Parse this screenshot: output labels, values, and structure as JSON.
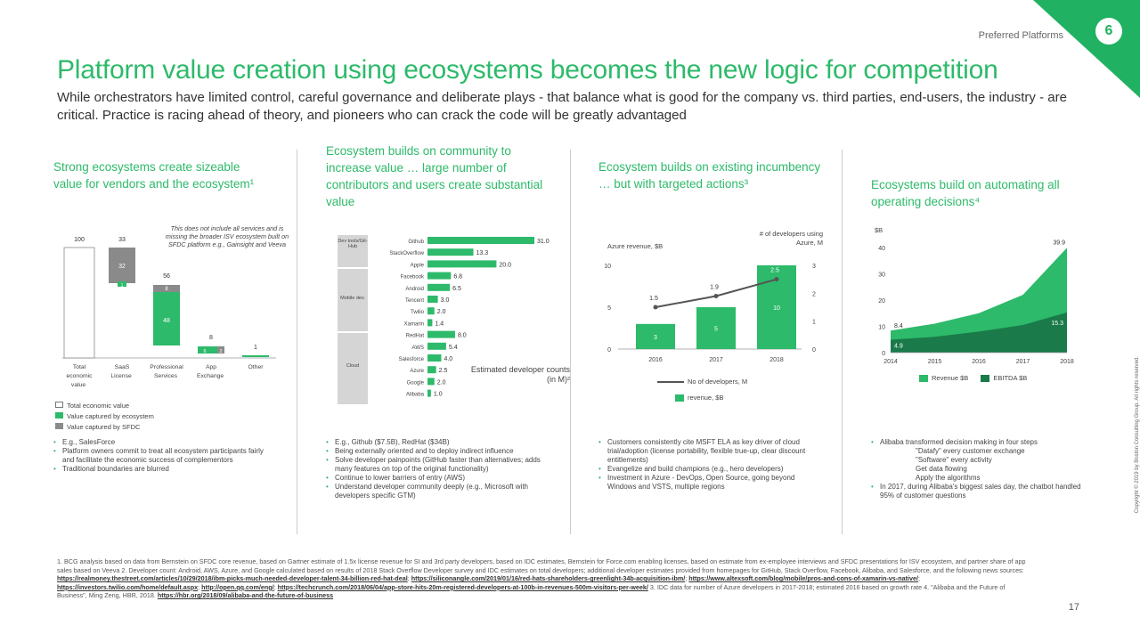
{
  "header": {
    "section": "Preferred Platforms",
    "page_badge": "6"
  },
  "title": "Platform value creation using ecosystems becomes the new logic for competition",
  "subtitle": "While orchestrators have limited control, careful governance and deliberate plays - that balance what is good for the company vs. third parties, end-users, the industry - are critical. Practice is racing ahead of theory, and pioneers who can crack the code will be greatly advantaged",
  "colors": {
    "green": "#2dba6a",
    "dark_green": "#1a7a4a",
    "grey": "#888888"
  },
  "col1": {
    "heading": "Strong ecosystems create sizeable value for vendors and the ecosystem¹",
    "note": "This does not include all services and is missing the broader ISV ecosystem built on SFDC platform e.g., Gainsight and Veeva",
    "legend": [
      "Total economic value",
      "Value captured by ecosystem",
      "Value captured by SFDC"
    ],
    "bullets": [
      "E.g., SalesForce",
      "Platform owners commit to treat all ecosystem participants fairly and facilitate the economic success of complementors",
      "Traditional boundaries are blurred"
    ]
  },
  "col2": {
    "heading": "Ecosystem builds on community to increase value … large number of contributors and users create substantial value",
    "group_labels": [
      "Dev tools/Git-Hub",
      "Mobile dev.",
      "Cloud"
    ],
    "chart_label": "Estimated developer counts (in M)²",
    "bullets": [
      "E.g., Github ($7.5B), RedHat ($34B)",
      "Being externally oriented and to deploy indirect influence",
      "Solve developer painpoints (GitHub faster than alternatives; adds many features on top of the original functionality)",
      "Continue to lower barriers of entry (AWS)",
      "Understand developer community deeply (e.g., Microsoft with developers specific GTM)"
    ]
  },
  "col3": {
    "heading": "Ecosystem builds on existing incumbency … but with targeted actions³",
    "left_axis_label": "Azure revenue, $B",
    "right_axis_label": "# of developers using Azure, M",
    "legend": [
      "No of developers, M",
      "revenue, $B"
    ],
    "bullets": [
      "Customers consistently cite MSFT ELA as key driver of cloud trial/adoption (license portability, flexible true-up, clear discount entitlements)",
      "Evangelize and build champions (e.g., hero developers)",
      "Investment in Azure - DevOps, Open Source, going beyond Windows and VSTS, multiple regions"
    ]
  },
  "col4": {
    "heading": "Ecosystems build on automating all operating decisions⁴",
    "axis_unit": "$B",
    "legend": [
      "Revenue $B",
      "EBITDA $B"
    ],
    "bullets": [
      "Alibaba transformed decision making in four steps",
      "\"Datafy\" every customer exchange",
      "\"Software\" every activity",
      "Get data flowing",
      "Apply the algorithms",
      "In 2017, during Alibaba's biggest sales day, the chatbot handled 95% of customer questions"
    ]
  },
  "chart_data": [
    {
      "type": "bar",
      "title": "",
      "categories": [
        "Total economic value",
        "SaaS License",
        "Professional Services",
        "App Exchange",
        "Other"
      ],
      "series": [
        {
          "name": "Total economic value",
          "values": [
            100,
            0,
            0,
            0,
            0
          ]
        },
        {
          "name": "Value captured by ecosystem",
          "values": [
            0,
            1,
            48,
            6,
            1
          ]
        },
        {
          "name": "Value captured by SFDC",
          "values": [
            0,
            32,
            8,
            2,
            0
          ]
        }
      ],
      "top_labels": [
        "100",
        "33",
        "56",
        "8",
        "1"
      ],
      "segment_labels": [
        "32",
        "1",
        "48",
        "8",
        "6",
        "2"
      ],
      "ylim": [
        0,
        100
      ]
    },
    {
      "type": "bar",
      "title": "Estimated developer counts (in M)²",
      "categories": [
        "Github",
        "StackOverflow",
        "Apple",
        "Facebook",
        "Android",
        "Tencent",
        "Twilio",
        "Xamarin",
        "RedHat",
        "AWS",
        "Salesforce",
        "Azure",
        "Google",
        "Alibaba"
      ],
      "values": [
        31.0,
        13.3,
        20.0,
        6.8,
        6.5,
        3.0,
        2.0,
        1.4,
        8.0,
        5.4,
        4.0,
        2.5,
        2.0,
        1.0
      ],
      "value_labels": [
        "31.0",
        "13.3",
        "20.0",
        "6.8",
        "6.5",
        "3.0",
        "2.0",
        "1.4",
        "8.0",
        "5.4",
        "4.0",
        "2.5",
        "2.0",
        "1.0"
      ],
      "xlim": [
        0,
        31
      ]
    },
    {
      "type": "bar",
      "title": "",
      "categories": [
        "2016",
        "2017",
        "2018"
      ],
      "series": [
        {
          "name": "revenue, $B",
          "values": [
            3,
            5,
            10
          ]
        },
        {
          "name": "No of developers, M",
          "values": [
            1.5,
            1.9,
            2.5
          ]
        }
      ],
      "bar_labels": [
        "3",
        "5",
        "10"
      ],
      "line_labels": [
        "1.5",
        "1.9",
        "2.5"
      ],
      "left_ticks": [
        "0",
        "5",
        "10"
      ],
      "right_ticks": [
        "0",
        "1",
        "2",
        "3"
      ],
      "ylim": [
        0,
        10
      ],
      "y2lim": [
        0,
        3
      ]
    },
    {
      "type": "area",
      "title": "",
      "x": [
        "2014",
        "2015",
        "2016",
        "2017",
        "2018"
      ],
      "series": [
        {
          "name": "Revenue $B",
          "values": [
            8.4,
            11,
            15,
            22,
            39.9
          ]
        },
        {
          "name": "EBITDA $B",
          "values": [
            4.9,
            6,
            8,
            10.5,
            15.3
          ]
        }
      ],
      "point_labels": [
        "8.4",
        "39.9",
        "4.9",
        "15.3"
      ],
      "y_ticks": [
        "0",
        "10",
        "20",
        "30",
        "40"
      ],
      "ylim": [
        0,
        40
      ]
    }
  ],
  "footnote": {
    "text": "1. BCG analysis based on data from Bernstein on SFDC core revenue, based on Gartner estimate of 1.5x license revenue for SI and 3rd party developers, based on IDC estimates, Bernstein for Force.com enabling licenses, based on estimate from ex-employee interviews and SFDC presentations for ISV ecosystem, and partner share of app sales based on Veeva 2. Developer count: Android, AWS, Azure, and Google calculated based on results of 2018 Stack Overflow Developer survey and IDC estimates on total developers; additional developer estimates provided from homepages for GitHub, Stack Overflow, Facebook, Alibaba, and Salesforce, and the following news sources:",
    "links": [
      "https://realmoney.thestreet.com/articles/10/29/2018/ibm-picks-much-needed-developer-talent-34-billion-red-hat-deal",
      "https://siliconangle.com/2019/01/16/red-hats-shareholders-greenlight-34b-acquisition-ibm/",
      "https://www.altexsoft.com/blog/mobile/pros-and-cons-of-xamarin-vs-native/",
      "https://investors.twilio.com/home/default.aspx",
      "http://open.qq.com/eng/",
      "https://techcrunch.com/2018/06/04/app-store-hits-20m-registered-developers-at-100b-in-revenues-500m-visitors-per-week/"
    ],
    "tail": "3. IDC data for number of Azure developers in 2017-2018; estimated 2016 based on growth rate 4. \"Alibaba and the Future of Business\", Ming Zeng, HBR, 2018.",
    "last_link": "https://hbr.org/2018/09/alibaba-and-the-future-of-business"
  },
  "side_note": "Copyright © 2019 by Boston Consulting Group. All rights reserved.",
  "page_number": "17"
}
